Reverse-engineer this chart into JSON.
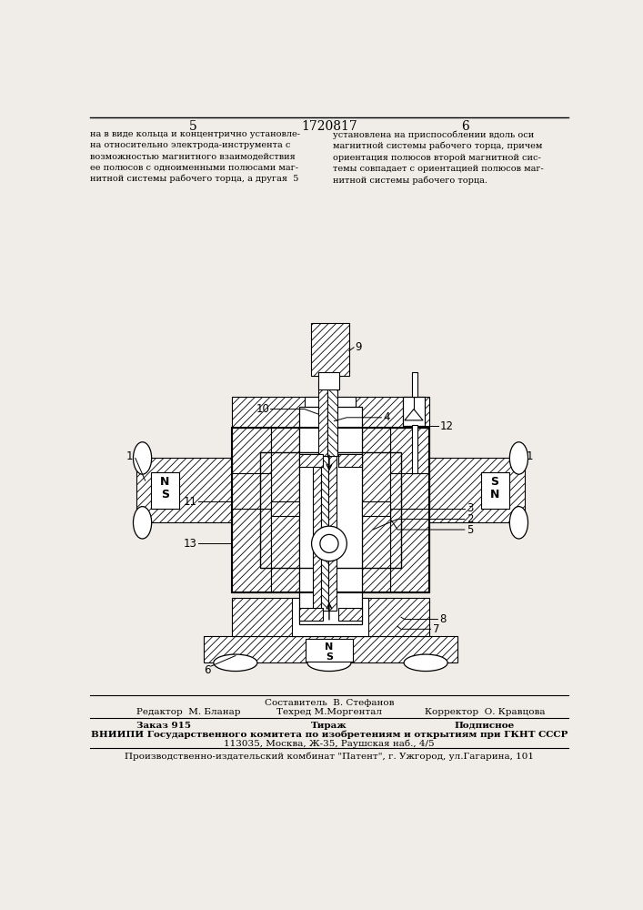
{
  "page_num_left": "5",
  "page_num_center": "1720817",
  "page_num_right": "6",
  "text_left": "на в виде кольца и концентрично установле-\nна относительно электрода-инструмента с\nвозможностью магнитного взаимодействия\nее полюсов с одноименными полюсами маг-\nнитной системы рабочего торца, а другая  5",
  "text_right": "установлена на приспособлении вдоль оси\nмагнитной системы рабочего торца, причем\nориентация полюсов второй магнитной сис-\nтемы совпадает с ориентацией полюсов маг-\nнитной системы рабочего торца.",
  "footer_line0_col2": "Составитель  В. Стефанов",
  "footer_line1_col1": "Редактор  М. Бланар",
  "footer_line1_col2": "Техред М.Моргентал",
  "footer_line1_col3": "Корректор  О. Кравцова",
  "footer_line2_col1": "Заказ 915",
  "footer_line2_col2": "Тираж",
  "footer_line2_col3": "Подписное",
  "footer_line3": "ВНИИПИ Государственного комитета по изобретениям и открытиям при ГКНТ СССР",
  "footer_line4": "113035, Москва, Ж-35, Раушская наб., 4/5",
  "footer_last": "Производственно-издательский комбинат \"Патент\", г. Ужгород, ул.Гагарина, 101",
  "bg_color": "#f0ede8"
}
